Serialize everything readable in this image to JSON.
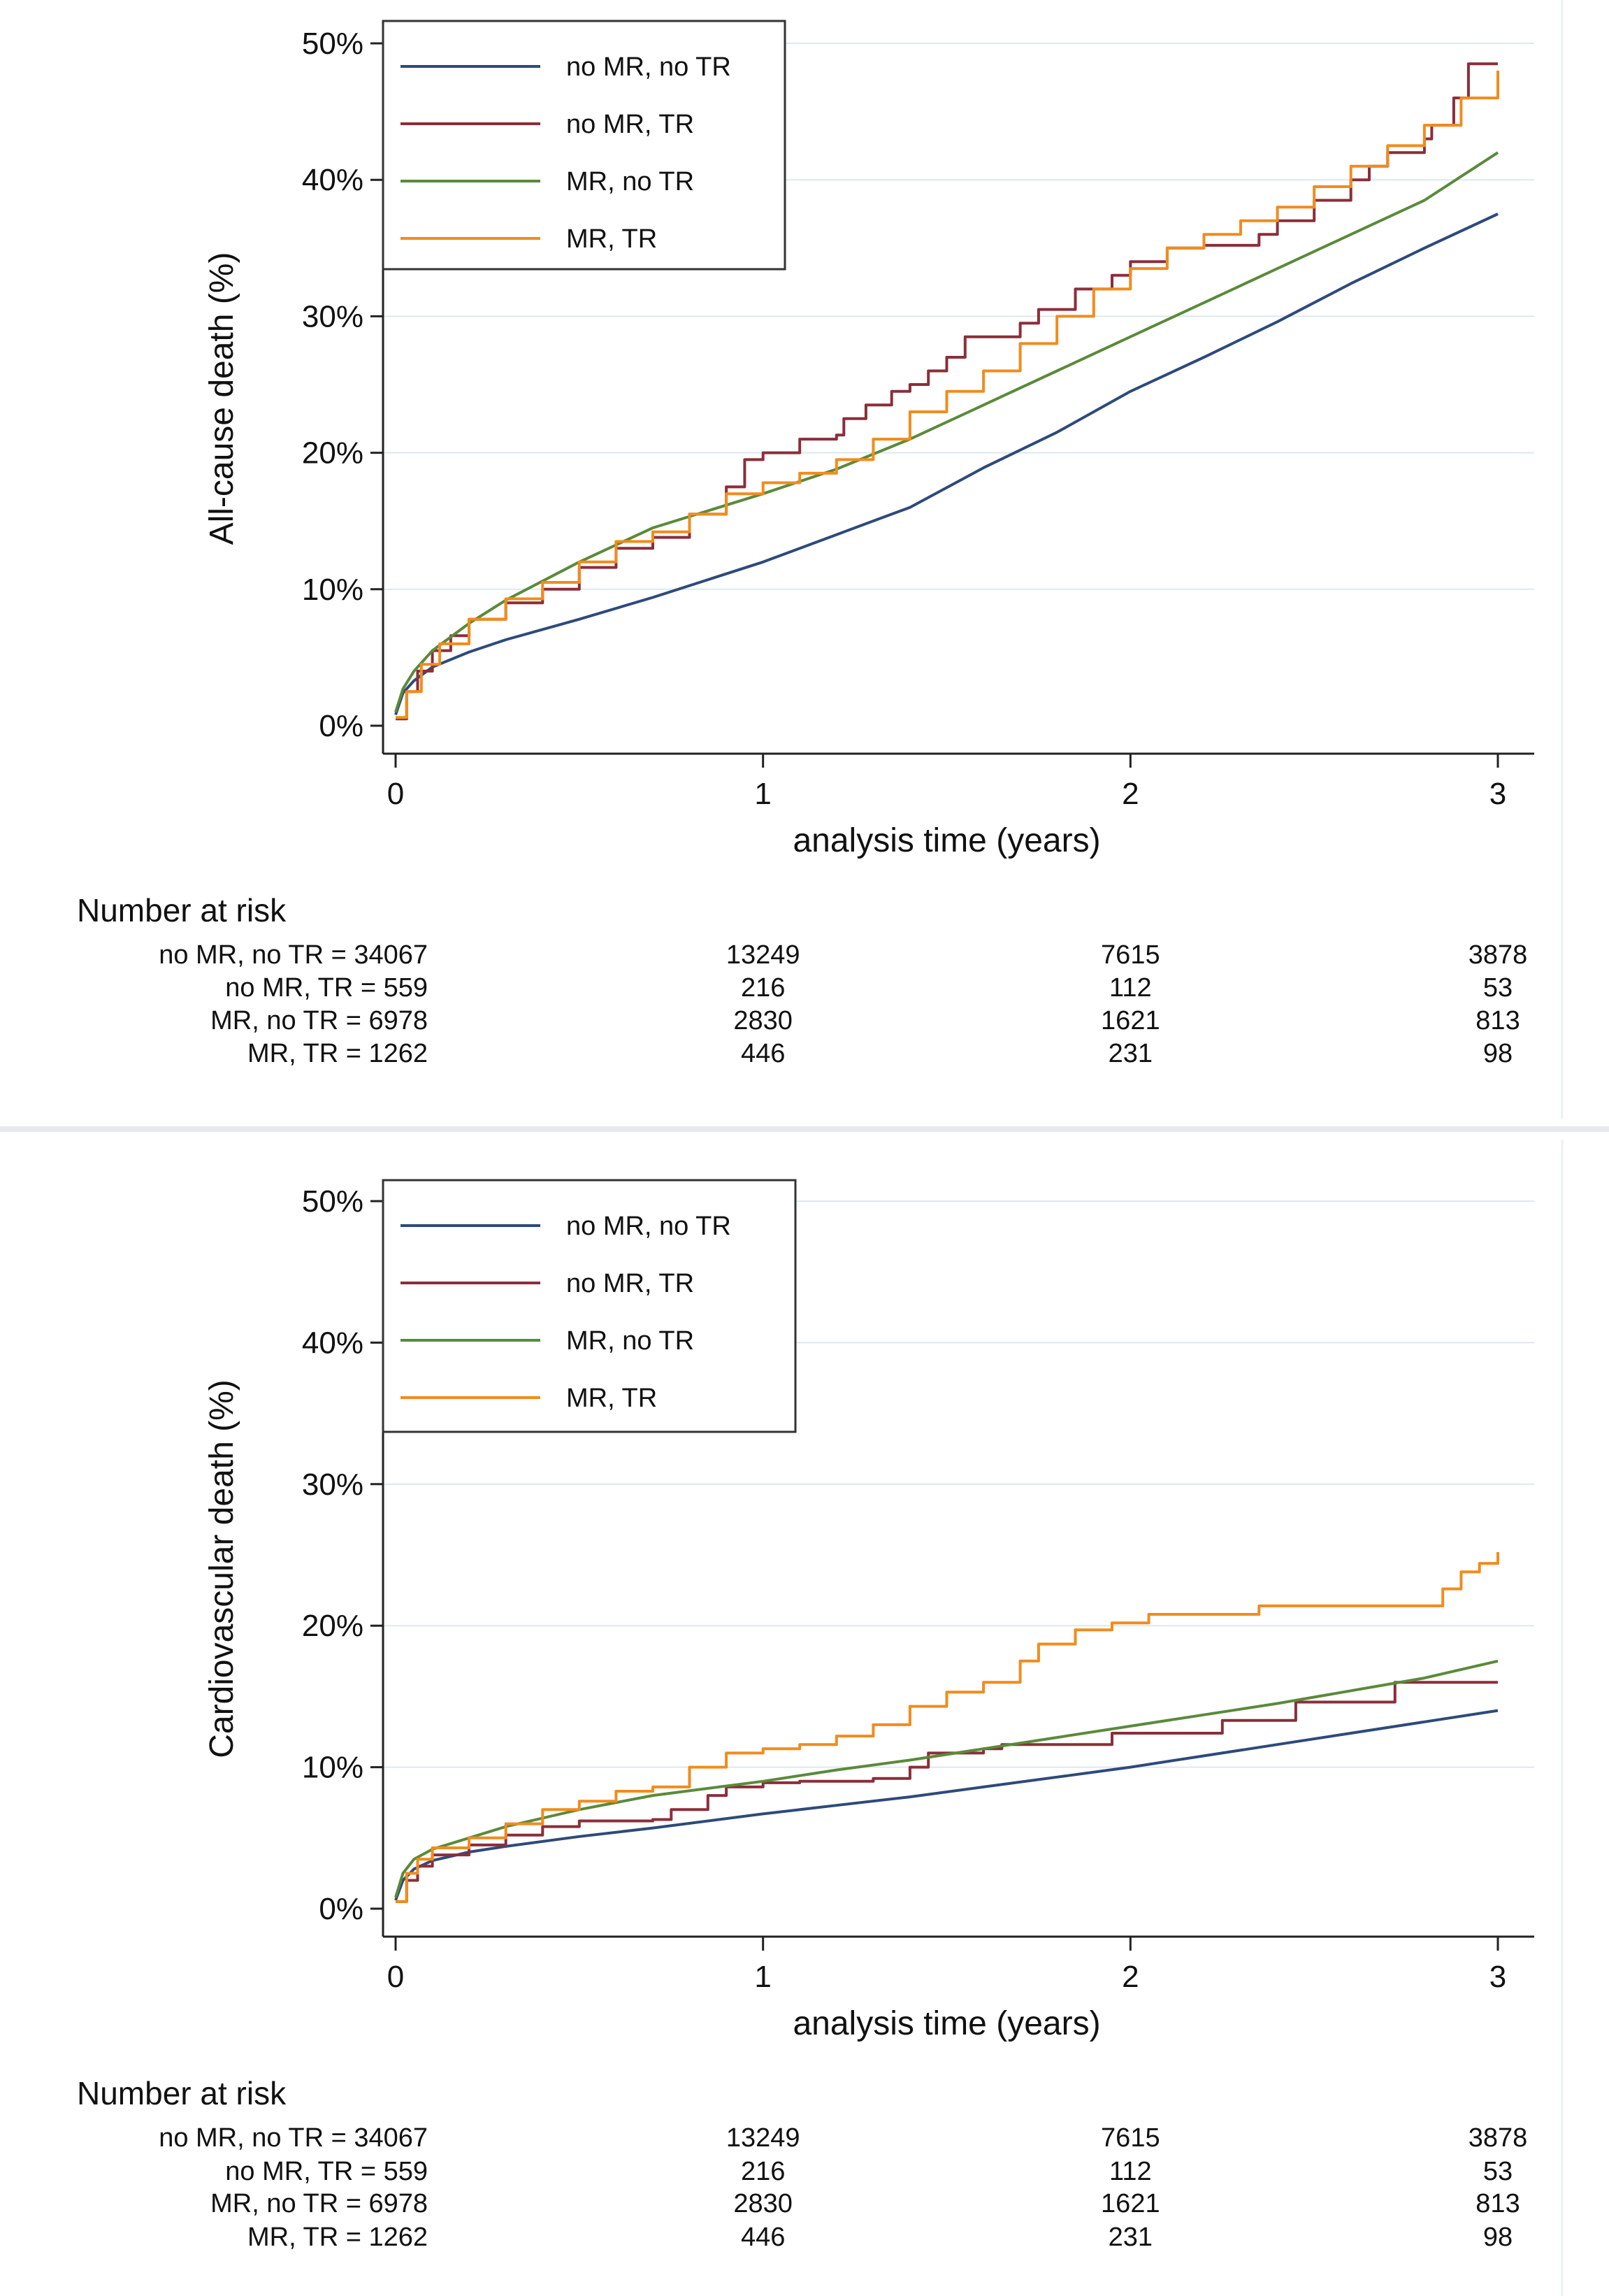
{
  "chart_data": [
    {
      "type": "line",
      "ylabel": "All-cause death (%)",
      "xlabel": "analysis time (years)",
      "xlim": [
        0,
        3
      ],
      "ylim": [
        0,
        50
      ],
      "x_ticks": [
        "0",
        "1",
        "2",
        "3"
      ],
      "y_ticks": [
        "0%",
        "10%",
        "20%",
        "30%",
        "40%",
        "50%"
      ],
      "grid": true,
      "legend_position": "top-left",
      "series": [
        {
          "name": "no MR, no TR",
          "color": "#2e4a7a",
          "step": false,
          "points": [
            [
              0,
              0.8
            ],
            [
              0.02,
              2.4
            ],
            [
              0.05,
              3.3
            ],
            [
              0.1,
              4.3
            ],
            [
              0.2,
              5.4
            ],
            [
              0.3,
              6.3
            ],
            [
              0.5,
              7.8
            ],
            [
              0.7,
              9.4
            ],
            [
              1.0,
              12.0
            ],
            [
              1.2,
              14.0
            ],
            [
              1.4,
              16.0
            ],
            [
              1.6,
              18.9
            ],
            [
              1.8,
              21.5
            ],
            [
              2.0,
              24.5
            ],
            [
              2.2,
              27.0
            ],
            [
              2.4,
              29.6
            ],
            [
              2.6,
              32.4
            ],
            [
              2.8,
              35.0
            ],
            [
              3.0,
              37.5
            ]
          ]
        },
        {
          "name": "no MR, TR",
          "color": "#8b2e3a",
          "step": true,
          "points": [
            [
              0,
              0.5
            ],
            [
              0.03,
              2.5
            ],
            [
              0.06,
              4.0
            ],
            [
              0.1,
              5.5
            ],
            [
              0.15,
              6.6
            ],
            [
              0.2,
              7.8
            ],
            [
              0.3,
              9.0
            ],
            [
              0.4,
              10.0
            ],
            [
              0.5,
              11.6
            ],
            [
              0.6,
              13.0
            ],
            [
              0.7,
              13.8
            ],
            [
              0.8,
              15.5
            ],
            [
              0.9,
              17.5
            ],
            [
              0.95,
              19.5
            ],
            [
              1.0,
              20.0
            ],
            [
              1.1,
              21.0
            ],
            [
              1.2,
              21.3
            ],
            [
              1.22,
              22.5
            ],
            [
              1.28,
              23.5
            ],
            [
              1.35,
              24.5
            ],
            [
              1.4,
              25.0
            ],
            [
              1.45,
              26.0
            ],
            [
              1.5,
              27.0
            ],
            [
              1.55,
              28.5
            ],
            [
              1.65,
              28.5
            ],
            [
              1.7,
              29.5
            ],
            [
              1.75,
              30.5
            ],
            [
              1.85,
              32.0
            ],
            [
              1.95,
              33.0
            ],
            [
              2.0,
              34.0
            ],
            [
              2.1,
              35.0
            ],
            [
              2.2,
              35.2
            ],
            [
              2.3,
              35.2
            ],
            [
              2.35,
              36.0
            ],
            [
              2.4,
              37.0
            ],
            [
              2.5,
              38.5
            ],
            [
              2.6,
              40.0
            ],
            [
              2.65,
              41.0
            ],
            [
              2.7,
              42.0
            ],
            [
              2.8,
              43.0
            ],
            [
              2.82,
              44.0
            ],
            [
              2.88,
              46.0
            ],
            [
              2.92,
              48.5
            ],
            [
              3.0,
              48.5
            ]
          ]
        },
        {
          "name": "MR, no TR",
          "color": "#5a8a3a",
          "step": false,
          "points": [
            [
              0,
              1.0
            ],
            [
              0.02,
              2.7
            ],
            [
              0.05,
              4.0
            ],
            [
              0.1,
              5.5
            ],
            [
              0.2,
              7.5
            ],
            [
              0.3,
              9.2
            ],
            [
              0.5,
              12.0
            ],
            [
              0.7,
              14.5
            ],
            [
              1.0,
              17.0
            ],
            [
              1.2,
              18.8
            ],
            [
              1.4,
              21.0
            ],
            [
              1.6,
              23.5
            ],
            [
              1.8,
              26.0
            ],
            [
              2.0,
              28.5
            ],
            [
              2.2,
              31.0
            ],
            [
              2.4,
              33.5
            ],
            [
              2.6,
              36.0
            ],
            [
              2.8,
              38.5
            ],
            [
              3.0,
              42.0
            ]
          ]
        },
        {
          "name": "MR, TR",
          "color": "#f08c1e",
          "step": true,
          "points": [
            [
              0,
              0.6
            ],
            [
              0.03,
              2.5
            ],
            [
              0.07,
              4.5
            ],
            [
              0.12,
              6.0
            ],
            [
              0.2,
              7.8
            ],
            [
              0.3,
              9.3
            ],
            [
              0.4,
              10.5
            ],
            [
              0.5,
              12.0
            ],
            [
              0.6,
              13.5
            ],
            [
              0.7,
              14.2
            ],
            [
              0.8,
              15.5
            ],
            [
              0.9,
              17.0
            ],
            [
              1.0,
              17.8
            ],
            [
              1.1,
              18.5
            ],
            [
              1.2,
              19.5
            ],
            [
              1.3,
              21.0
            ],
            [
              1.4,
              23.0
            ],
            [
              1.5,
              24.5
            ],
            [
              1.6,
              26.0
            ],
            [
              1.7,
              28.0
            ],
            [
              1.8,
              30.0
            ],
            [
              1.9,
              32.0
            ],
            [
              2.0,
              33.5
            ],
            [
              2.1,
              35.0
            ],
            [
              2.2,
              36.0
            ],
            [
              2.3,
              37.0
            ],
            [
              2.4,
              38.0
            ],
            [
              2.5,
              39.5
            ],
            [
              2.6,
              41.0
            ],
            [
              2.7,
              42.5
            ],
            [
              2.8,
              44.0
            ],
            [
              2.9,
              46.0
            ],
            [
              3.0,
              48.0
            ]
          ]
        }
      ],
      "number_at_risk": {
        "title": "Number at risk",
        "rows": [
          {
            "label": "no MR, no TR = 34067",
            "values": [
              "13249",
              "7615",
              "3878"
            ]
          },
          {
            "label": "no MR, TR =   559",
            "values": [
              "216",
              "112",
              "53"
            ]
          },
          {
            "label": "MR, no TR = 6978",
            "values": [
              "2830",
              "1621",
              "813"
            ]
          },
          {
            "label": "MR, TR =  1262",
            "values": [
              "446",
              "231",
              "98"
            ]
          }
        ]
      }
    },
    {
      "type": "line",
      "ylabel": "Cardiovascular death (%)",
      "xlabel": "analysis time (years)",
      "xlim": [
        0,
        3
      ],
      "ylim": [
        0,
        50
      ],
      "x_ticks": [
        "0",
        "1",
        "2",
        "3"
      ],
      "y_ticks": [
        "0%",
        "10%",
        "20%",
        "30%",
        "40%",
        "50%"
      ],
      "grid": true,
      "legend_position": "top-left",
      "series": [
        {
          "name": "no MR, no TR",
          "color": "#2e4a7a",
          "step": false,
          "points": [
            [
              0,
              0.6
            ],
            [
              0.02,
              2.0
            ],
            [
              0.05,
              2.8
            ],
            [
              0.1,
              3.4
            ],
            [
              0.2,
              4.0
            ],
            [
              0.3,
              4.4
            ],
            [
              0.5,
              5.1
            ],
            [
              0.7,
              5.7
            ],
            [
              1.0,
              6.7
            ],
            [
              1.2,
              7.3
            ],
            [
              1.4,
              7.9
            ],
            [
              1.6,
              8.6
            ],
            [
              1.8,
              9.3
            ],
            [
              2.0,
              10.0
            ],
            [
              2.2,
              10.8
            ],
            [
              2.4,
              11.6
            ],
            [
              2.6,
              12.4
            ],
            [
              2.8,
              13.2
            ],
            [
              3.0,
              14.0
            ]
          ]
        },
        {
          "name": "no MR, TR",
          "color": "#8b2e3a",
          "step": true,
          "points": [
            [
              0,
              0.5
            ],
            [
              0.03,
              2.0
            ],
            [
              0.06,
              3.0
            ],
            [
              0.1,
              3.8
            ],
            [
              0.2,
              4.5
            ],
            [
              0.3,
              5.2
            ],
            [
              0.4,
              5.8
            ],
            [
              0.5,
              6.2
            ],
            [
              0.7,
              6.3
            ],
            [
              0.75,
              7.0
            ],
            [
              0.85,
              8.0
            ],
            [
              0.9,
              8.6
            ],
            [
              1.0,
              8.9
            ],
            [
              1.1,
              9.0
            ],
            [
              1.3,
              9.2
            ],
            [
              1.4,
              10.0
            ],
            [
              1.45,
              11.0
            ],
            [
              1.6,
              11.3
            ],
            [
              1.65,
              11.6
            ],
            [
              1.9,
              11.6
            ],
            [
              1.95,
              12.4
            ],
            [
              2.2,
              12.4
            ],
            [
              2.25,
              13.3
            ],
            [
              2.4,
              13.3
            ],
            [
              2.45,
              14.6
            ],
            [
              2.7,
              14.6
            ],
            [
              2.72,
              16.0
            ],
            [
              3.0,
              16.0
            ]
          ]
        },
        {
          "name": "MR, no TR",
          "color": "#5a8a3a",
          "step": false,
          "points": [
            [
              0,
              0.8
            ],
            [
              0.02,
              2.5
            ],
            [
              0.05,
              3.5
            ],
            [
              0.1,
              4.2
            ],
            [
              0.2,
              5.0
            ],
            [
              0.3,
              5.8
            ],
            [
              0.5,
              7.0
            ],
            [
              0.7,
              8.0
            ],
            [
              1.0,
              9.0
            ],
            [
              1.2,
              9.8
            ],
            [
              1.4,
              10.5
            ],
            [
              1.6,
              11.3
            ],
            [
              1.8,
              12.1
            ],
            [
              2.0,
              12.9
            ],
            [
              2.2,
              13.7
            ],
            [
              2.4,
              14.5
            ],
            [
              2.6,
              15.4
            ],
            [
              2.8,
              16.3
            ],
            [
              3.0,
              17.5
            ]
          ]
        },
        {
          "name": "MR, TR",
          "color": "#f08c1e",
          "step": true,
          "points": [
            [
              0,
              0.5
            ],
            [
              0.03,
              2.5
            ],
            [
              0.06,
              3.5
            ],
            [
              0.1,
              4.3
            ],
            [
              0.2,
              5.0
            ],
            [
              0.3,
              6.0
            ],
            [
              0.4,
              7.0
            ],
            [
              0.5,
              7.6
            ],
            [
              0.6,
              8.3
            ],
            [
              0.7,
              8.6
            ],
            [
              0.8,
              10.0
            ],
            [
              0.9,
              11.0
            ],
            [
              1.0,
              11.3
            ],
            [
              1.1,
              11.6
            ],
            [
              1.2,
              12.2
            ],
            [
              1.3,
              13.0
            ],
            [
              1.4,
              14.3
            ],
            [
              1.5,
              15.3
            ],
            [
              1.6,
              16.0
            ],
            [
              1.7,
              17.5
            ],
            [
              1.75,
              18.7
            ],
            [
              1.85,
              19.7
            ],
            [
              1.95,
              20.2
            ],
            [
              2.05,
              20.8
            ],
            [
              2.3,
              20.8
            ],
            [
              2.35,
              21.4
            ],
            [
              2.8,
              21.4
            ],
            [
              2.85,
              22.6
            ],
            [
              2.9,
              23.8
            ],
            [
              2.95,
              24.4
            ],
            [
              3.0,
              25.2
            ]
          ]
        }
      ],
      "number_at_risk": {
        "title": "Number at risk",
        "rows": [
          {
            "label": "no MR, no TR = 34067",
            "values": [
              "13249",
              "7615",
              "3878"
            ]
          },
          {
            "label": "no MR, TR =   559",
            "values": [
              "216",
              "112",
              "53"
            ]
          },
          {
            "label": "MR, no TR = 6978",
            "values": [
              "2830",
              "1621",
              "813"
            ]
          },
          {
            "label": "MR, TR =  1262",
            "values": [
              "446",
              "231",
              "98"
            ]
          }
        ]
      }
    }
  ]
}
